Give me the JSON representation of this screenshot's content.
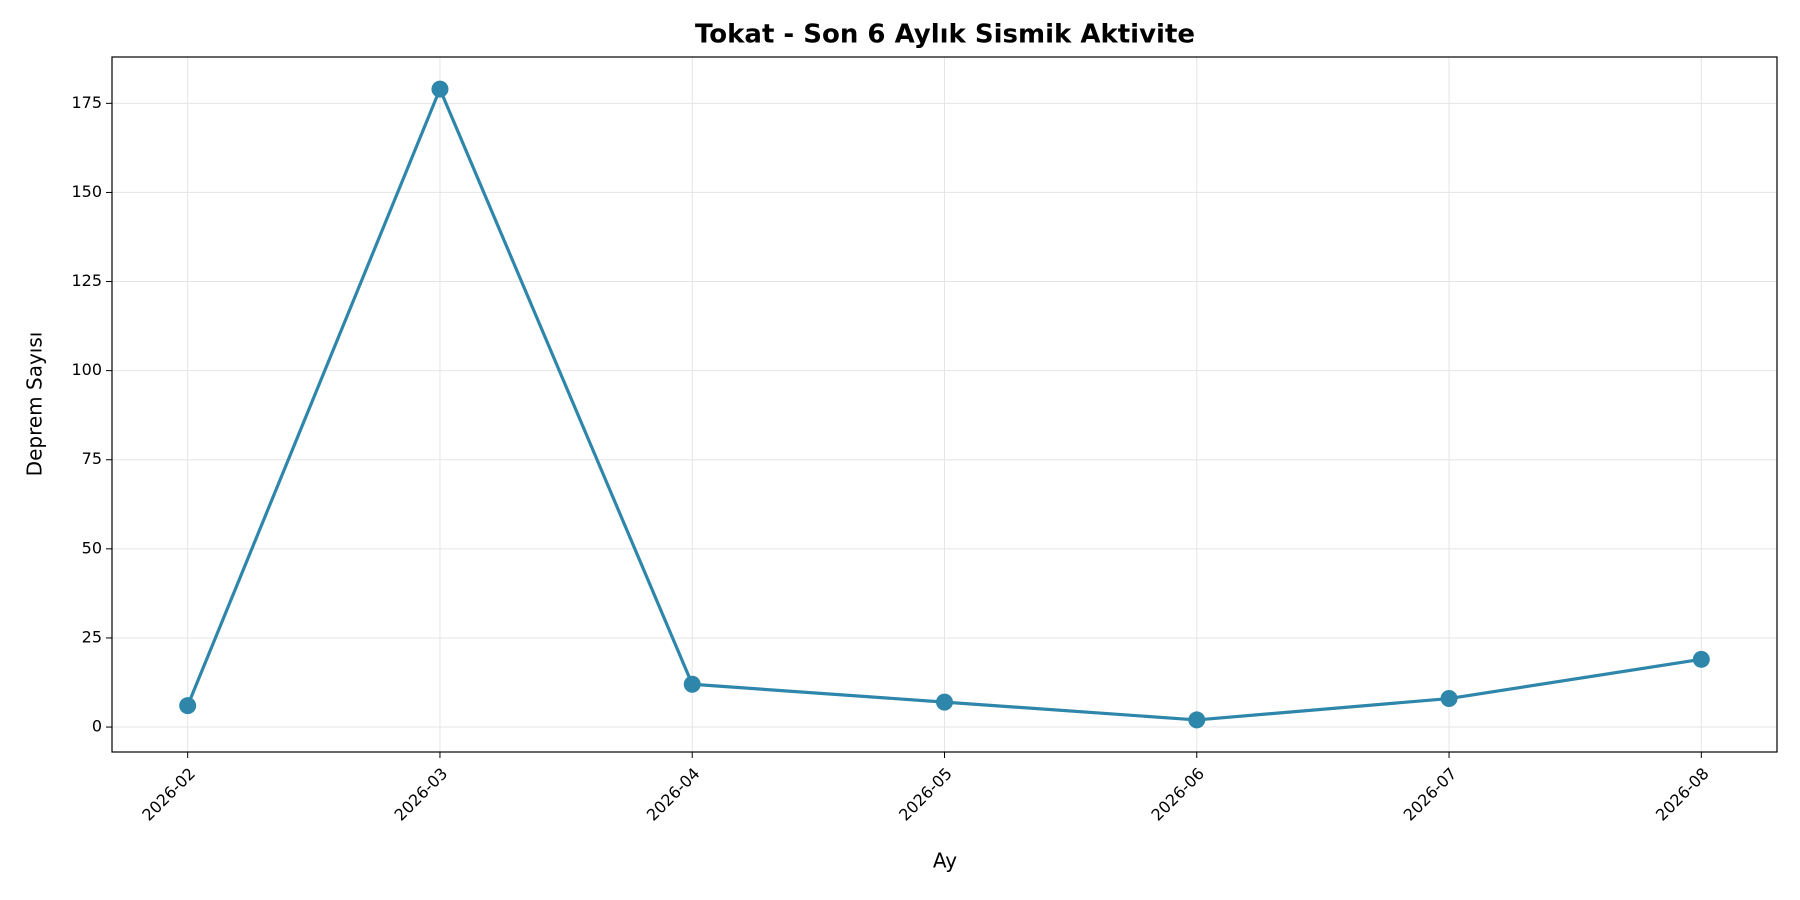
{
  "chart_data": {
    "type": "line",
    "title": "Tokat - Son 6 Aylık Sismik Aktivite",
    "x_label": "Ay",
    "y_label": "Deprem Sayısı",
    "categories": [
      "2026-02",
      "2026-03",
      "2026-04",
      "2026-05",
      "2026-06",
      "2026-07",
      "2026-08"
    ],
    "series": [
      {
        "name": "Deprem Sayısı",
        "color": "#2e86ab",
        "values": [
          6,
          179,
          12,
          7,
          2,
          8,
          19
        ]
      }
    ],
    "ylim": [
      -7,
      188
    ],
    "yticks": [
      0,
      25,
      50,
      75,
      100,
      125,
      150,
      175
    ],
    "grid": true
  }
}
